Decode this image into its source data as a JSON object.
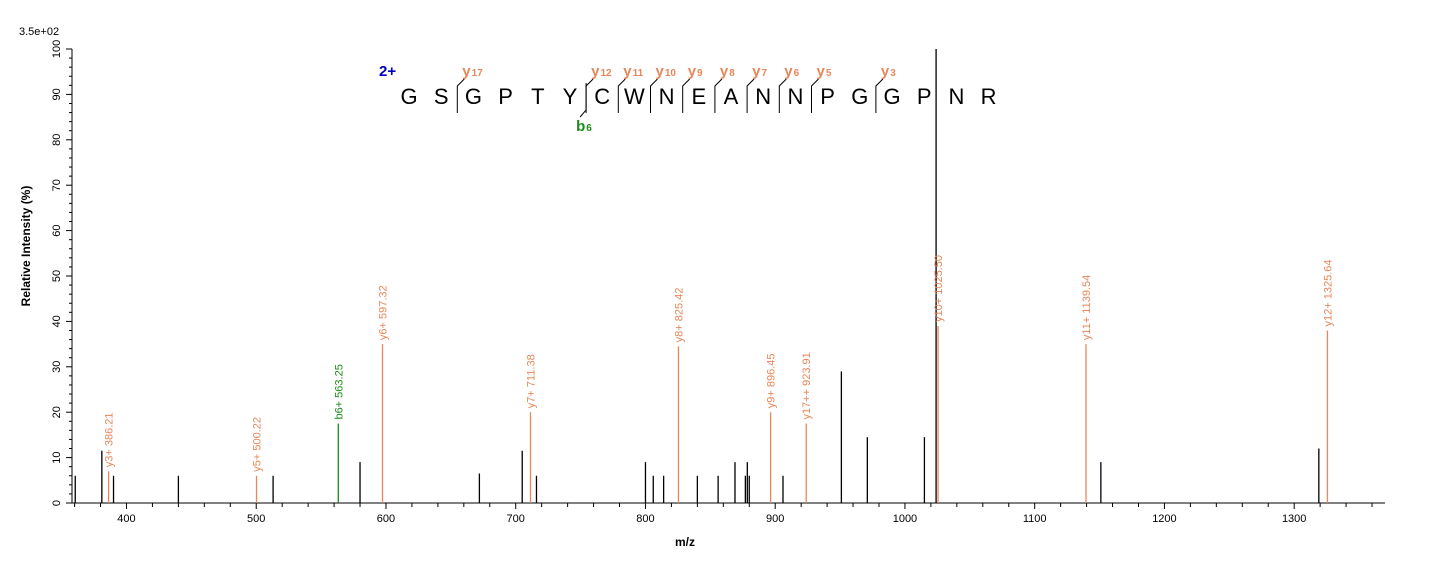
{
  "chart_data": {
    "type": "bar",
    "title": "",
    "scale_label": "3.5e+02",
    "xlabel": "m/z",
    "ylabel": "Relative  Intensity (%)",
    "xlim": [
      358,
      1370
    ],
    "ylim": [
      0,
      100
    ],
    "x_ticks": [
      400,
      500,
      600,
      700,
      800,
      900,
      1000,
      1100,
      1200,
      1300
    ],
    "y_ticks": [
      0,
      10,
      20,
      30,
      40,
      50,
      60,
      70,
      80,
      90,
      100
    ],
    "colors": {
      "y_ion": "#e8875a",
      "b_ion": "#1a8c1a",
      "unassigned": "#000000",
      "charge": "#0000c0"
    },
    "series": [
      {
        "name": "y ions",
        "points": [
          {
            "x": 386.21,
            "y": 7,
            "label": "y3+ 386.21"
          },
          {
            "x": 500.22,
            "y": 6,
            "label": "y5+ 500.22"
          },
          {
            "x": 597.32,
            "y": 35,
            "label": "y6+ 597.32"
          },
          {
            "x": 711.38,
            "y": 20,
            "label": "y7+ 711.38"
          },
          {
            "x": 825.42,
            "y": 34.5,
            "label": "y8+ 825.42"
          },
          {
            "x": 896.45,
            "y": 20,
            "label": "y9+ 896.45"
          },
          {
            "x": 923.91,
            "y": 17.5,
            "label": "y17++ 923.91"
          },
          {
            "x": 1025.5,
            "y": 39,
            "label": "y10+ 1025.50"
          },
          {
            "x": 1139.54,
            "y": 35,
            "label": "y11+ 1139.54"
          },
          {
            "x": 1325.64,
            "y": 38,
            "label": "y12+ 1325.64"
          }
        ]
      },
      {
        "name": "b ions",
        "points": [
          {
            "x": 563.25,
            "y": 17.5,
            "label": "b6+ 563.25"
          }
        ]
      },
      {
        "name": "unassigned",
        "points": [
          {
            "x": 360.5,
            "y": 6
          },
          {
            "x": 381,
            "y": 11.5
          },
          {
            "x": 390,
            "y": 6
          },
          {
            "x": 440,
            "y": 6
          },
          {
            "x": 513,
            "y": 6
          },
          {
            "x": 580,
            "y": 9
          },
          {
            "x": 672,
            "y": 6.5
          },
          {
            "x": 705,
            "y": 11.5
          },
          {
            "x": 716,
            "y": 6
          },
          {
            "x": 800,
            "y": 9
          },
          {
            "x": 806,
            "y": 6
          },
          {
            "x": 814,
            "y": 6
          },
          {
            "x": 840,
            "y": 6
          },
          {
            "x": 856,
            "y": 6
          },
          {
            "x": 869,
            "y": 9
          },
          {
            "x": 877,
            "y": 6
          },
          {
            "x": 878.5,
            "y": 9
          },
          {
            "x": 880,
            "y": 6
          },
          {
            "x": 906,
            "y": 6
          },
          {
            "x": 951,
            "y": 29
          },
          {
            "x": 971,
            "y": 14.5
          },
          {
            "x": 1015,
            "y": 14.5
          },
          {
            "x": 1024,
            "y": 100
          },
          {
            "x": 1151,
            "y": 9
          },
          {
            "x": 1319,
            "y": 12
          }
        ]
      }
    ],
    "annotation": {
      "charge": "2+",
      "sequence": [
        "G",
        "S",
        "G",
        "P",
        "T",
        "Y",
        "C",
        "W",
        "N",
        "E",
        "A",
        "N",
        "N",
        "P",
        "G",
        "G",
        "P",
        "N",
        "R"
      ],
      "y_markers": [
        {
          "after": 2,
          "index": "17"
        },
        {
          "after": 6,
          "index": "12"
        },
        {
          "after": 7,
          "index": "11"
        },
        {
          "after": 8,
          "index": "10"
        },
        {
          "after": 9,
          "index": "9"
        },
        {
          "after": 10,
          "index": "8"
        },
        {
          "after": 11,
          "index": "7"
        },
        {
          "after": 12,
          "index": "6"
        },
        {
          "after": 13,
          "index": "5"
        },
        {
          "after": 15,
          "index": "3"
        }
      ],
      "b_markers": [
        {
          "after": 6,
          "index": "6"
        }
      ],
      "y_letter": "y",
      "b_letter": "b"
    }
  }
}
